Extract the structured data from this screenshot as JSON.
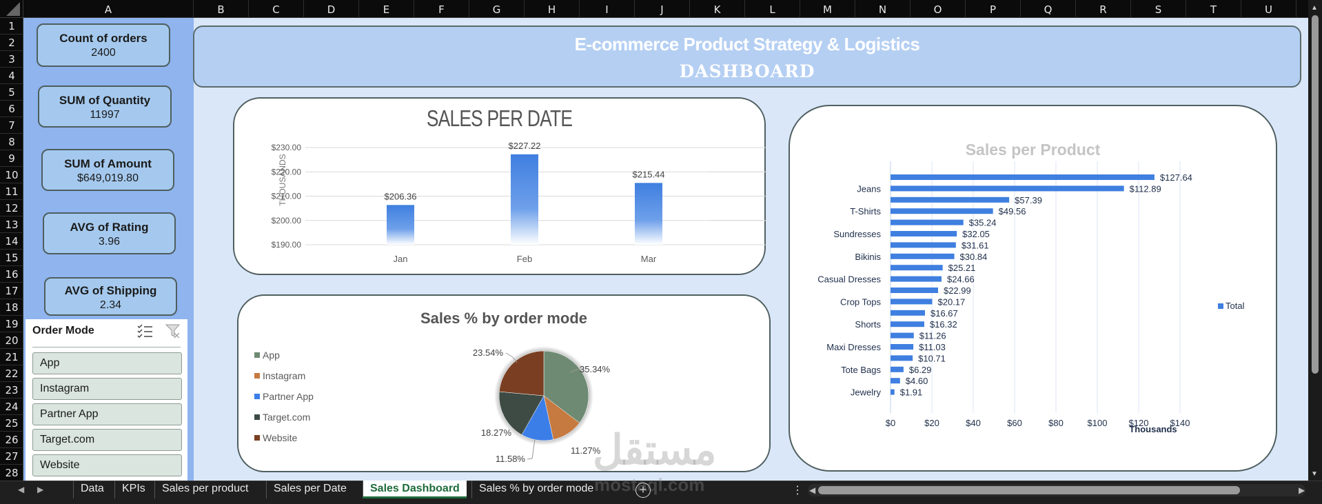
{
  "spreadsheet": {
    "column_headers": [
      "A",
      "B",
      "C",
      "D",
      "E",
      "F",
      "G",
      "H",
      "I",
      "J",
      "K",
      "L",
      "M",
      "N",
      "O",
      "P",
      "Q",
      "R",
      "S",
      "T",
      "U"
    ],
    "row_headers": [
      "1",
      "2",
      "3",
      "4",
      "5",
      "6",
      "7",
      "8",
      "9",
      "10",
      "11",
      "12",
      "13",
      "14",
      "15",
      "16",
      "17",
      "18",
      "19",
      "20",
      "21",
      "22",
      "23",
      "24",
      "25",
      "26",
      "27",
      "28"
    ]
  },
  "banner": {
    "title": "E-commerce Product Strategy & Logistics",
    "subtitle": "DASHBOARD"
  },
  "kpis": [
    {
      "label": "Count of orders",
      "value": "2400"
    },
    {
      "label": "SUM of Quantity",
      "value": "11997"
    },
    {
      "label": "SUM of Amount",
      "value": "$649,019.80"
    },
    {
      "label": "AVG of Rating",
      "value": "3.96"
    },
    {
      "label": "AVG of Shipping",
      "value": "2.34"
    }
  ],
  "slicer": {
    "title": "Order Mode",
    "items": [
      "App",
      "Instagram",
      "Partner App",
      "Target.com",
      "Website"
    ],
    "icons": [
      "multi-select-icon",
      "clear-filter-icon"
    ]
  },
  "sheet_tabs": {
    "nav": [
      "prev-sheet-icon",
      "next-sheet-icon"
    ],
    "tabs": [
      "Data",
      "KPIs",
      "Sales per product",
      "Sales per Date",
      "Sales Dashboard",
      "Sales % by order mode"
    ],
    "active": "Sales Dashboard",
    "add_icon": "add-sheet-icon"
  },
  "colors": {
    "bar_blue": "#3f7fe0",
    "app": "#6f8a73",
    "instagram": "#c67a40",
    "partner_app": "#3c7ee8",
    "target": "#3e4b45",
    "website": "#7a3f22",
    "accent_tab": "#1d6b3a"
  },
  "watermark": {
    "arabic": "مستقل",
    "latin": "mostaql.com"
  },
  "chart_data": [
    {
      "type": "bar",
      "title": "SALES PER DATE",
      "categories": [
        "Jan",
        "Feb",
        "Mar"
      ],
      "values": [
        206.36,
        227.22,
        215.44
      ],
      "data_labels": [
        "$206.36",
        "$227.22",
        "$215.44"
      ],
      "xlabel": "",
      "ylabel": "THOUSANDS",
      "ylim": [
        190,
        230
      ],
      "yticks": [
        "$190.00",
        "$200.00",
        "$210.00",
        "$220.00",
        "$230.00"
      ],
      "grid": true
    },
    {
      "type": "pie",
      "title": "Sales % by order mode",
      "categories": [
        "App",
        "Instagram",
        "Partner App",
        "Target.com",
        "Website"
      ],
      "values": [
        35.34,
        11.27,
        11.58,
        18.27,
        23.54
      ],
      "data_labels": [
        "35.34%",
        "11.27%",
        "11.58%",
        "18.27%",
        "23.54%"
      ],
      "legend_position": "left"
    },
    {
      "type": "bar",
      "orientation": "horizontal",
      "title": "Sales per Product",
      "categories": [
        "",
        "Jeans",
        "",
        "T-Shirts",
        "",
        "Sundresses",
        "",
        "Bikinis",
        "",
        "Casual Dresses",
        "",
        "Crop Tops",
        "",
        "Shorts",
        "",
        "Maxi Dresses",
        "",
        "Tote Bags",
        "",
        "Jewelry"
      ],
      "values": [
        127.64,
        112.89,
        57.39,
        49.56,
        35.24,
        32.05,
        31.61,
        30.84,
        25.21,
        24.66,
        22.99,
        20.17,
        16.67,
        16.32,
        11.26,
        11.03,
        10.71,
        6.29,
        4.6,
        1.91
      ],
      "data_labels": [
        "$127.64",
        "$112.89",
        "$57.39",
        "$49.56",
        "$35.24",
        "$32.05",
        "$31.61",
        "$30.84",
        "$25.21",
        "$24.66",
        "$22.99",
        "$20.17",
        "$16.67",
        "$16.32",
        "$11.26",
        "$11.03",
        "$10.71",
        "$6.29",
        "$4.60",
        "$1.91"
      ],
      "xlabel": "Thousands",
      "xticks": [
        "$0",
        "$20",
        "$40",
        "$60",
        "$80",
        "$100",
        "$120",
        "$140"
      ],
      "xlim": [
        0,
        140
      ],
      "legend": [
        "Total"
      ],
      "legend_position": "right",
      "grid": true
    }
  ]
}
